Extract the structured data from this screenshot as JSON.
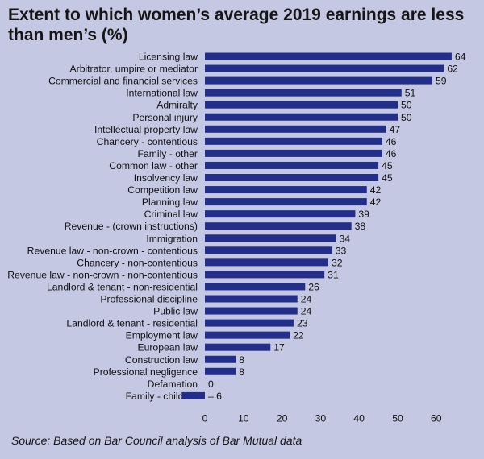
{
  "chart_data": {
    "type": "bar",
    "orientation": "horizontal",
    "title": "Extent to which women’s average 2019 earnings are less than men’s (%)",
    "categories": [
      "Licensing law",
      "Arbitrator, umpire or mediator",
      "Commercial and financial services",
      "International law",
      "Admiralty",
      "Personal injury",
      "Intellectual property law",
      "Chancery - contentious",
      "Family - other",
      "Common law - other",
      "Insolvency law",
      "Competition law",
      "Planning law",
      "Criminal law",
      "Revenue - (crown instructions)",
      "Immigration",
      "Revenue law - non-crown - contentious",
      "Chancery - non-contentious",
      "Revenue law - non-crown - non-contentious",
      "Landlord & tenant - non-residential",
      "Professional discipline",
      "Public law",
      "Landlord & tenant - residential",
      "Employment law",
      "European law",
      "Construction law",
      "Professional negligence",
      "Defamation",
      "Family - children"
    ],
    "values": [
      64,
      62,
      59,
      51,
      50,
      50,
      47,
      46,
      46,
      45,
      45,
      42,
      42,
      39,
      38,
      34,
      33,
      32,
      31,
      26,
      24,
      24,
      23,
      22,
      17,
      8,
      8,
      0,
      -6
    ],
    "value_labels": [
      "64",
      "62",
      "59",
      "51",
      "50",
      "50",
      "47",
      "46",
      "46",
      "45",
      "45",
      "42",
      "42",
      "39",
      "38",
      "34",
      "33",
      "32",
      "31",
      "26",
      "24",
      "24",
      "23",
      "22",
      "17",
      "8",
      "8",
      "0",
      "– 6"
    ],
    "xlim": [
      0,
      65
    ],
    "xticks": [
      0,
      10,
      20,
      30,
      40,
      50,
      60
    ],
    "xlabel": "",
    "ylabel": "",
    "grid": false,
    "legend": "none",
    "bar_color": "#232e8a",
    "background_color": "#c5c8e3"
  },
  "source": "Source: Based on Bar Council analysis of Bar Mutual data"
}
